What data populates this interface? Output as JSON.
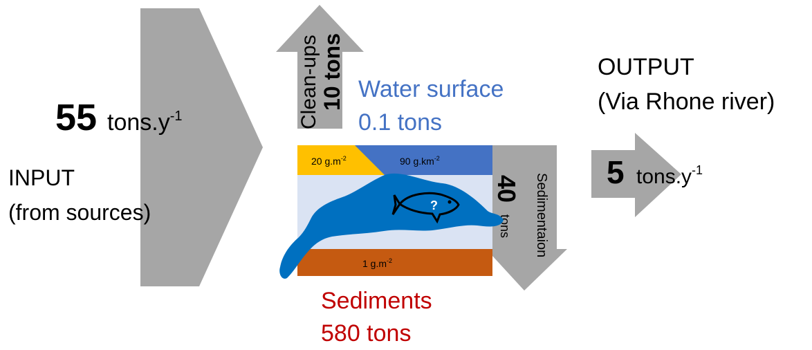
{
  "input": {
    "amount": "55",
    "unit": "tons.y",
    "unit_exp": "-1",
    "label_line1": "INPUT",
    "label_line2": "(from sources)"
  },
  "cleanups": {
    "label": "Clean-ups",
    "amount": "10 tons"
  },
  "water_surface": {
    "title": "Water surface",
    "amount": "0.1 tons"
  },
  "beach_density": {
    "value": "20 g.m",
    "exp": "-2"
  },
  "surface_density": {
    "value": "90 g.km",
    "exp": "-2"
  },
  "sediment_density": {
    "value": "1 g.m",
    "exp": "-2"
  },
  "fish_unknown": "?",
  "sedimentation": {
    "label": "Sedimentaion",
    "amount": "40",
    "unit": "tons"
  },
  "sediments": {
    "title": "Sediments",
    "amount": "580 tons"
  },
  "output": {
    "label_line1": "OUTPUT",
    "label_line2": "(Via Rhone river)",
    "amount": "5",
    "unit": "tons.y",
    "unit_exp": "-1"
  },
  "colors": {
    "arrow_gray": "#a6a6a6",
    "water_blue": "#4472c4",
    "beach_yellow": "#ffc000",
    "lake_light": "#dae3f3",
    "lake_shape": "#0070c0",
    "sediment_brown": "#c55a11",
    "sediments_text": "#c00000",
    "water_text": "#4472c4"
  }
}
